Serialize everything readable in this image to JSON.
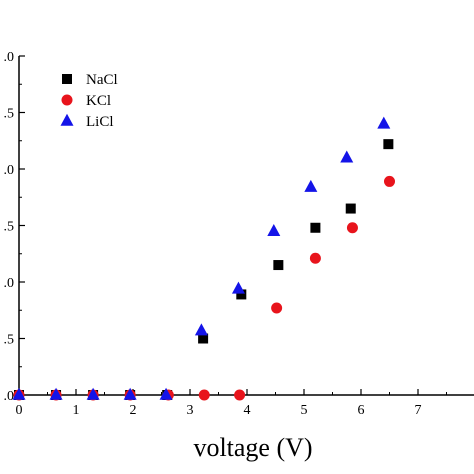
{
  "chart_data": {
    "type": "scatter",
    "title": "",
    "xlabel": "voltage (V)",
    "ylabel": "",
    "xlim": [
      0,
      8
    ],
    "ylim": [
      0,
      3.0
    ],
    "grid": false,
    "legend_position": "top-left",
    "x_tick_labels": [
      "0",
      "1",
      "2",
      "3",
      "4",
      "5",
      "6",
      "7"
    ],
    "y_tick_labels": [
      ".0",
      ".5",
      ".0",
      ".5",
      ".0",
      ".5",
      ".0"
    ],
    "series": [
      {
        "name": "NaCl",
        "marker": "square",
        "color": "#000000",
        "x": [
          0.0,
          0.65,
          1.3,
          1.95,
          2.6,
          3.23,
          3.9,
          4.55,
          5.2,
          5.82,
          6.48
        ],
        "y": [
          0.0,
          0.0,
          0.0,
          0.0,
          0.0,
          0.5,
          0.89,
          1.15,
          1.48,
          1.65,
          2.22
        ]
      },
      {
        "name": "KCl",
        "marker": "circle",
        "color": "#e8141c",
        "x": [
          0.0,
          0.65,
          1.3,
          1.95,
          2.62,
          3.25,
          3.87,
          4.52,
          5.2,
          5.85,
          6.5
        ],
        "y": [
          0.0,
          0.0,
          0.0,
          0.0,
          0.0,
          0.0,
          0.0,
          0.77,
          1.21,
          1.48,
          1.89
        ]
      },
      {
        "name": "LiCl",
        "marker": "triangle",
        "color": "#1414e8",
        "x": [
          0.0,
          0.65,
          1.3,
          1.95,
          2.58,
          3.2,
          3.85,
          4.47,
          5.12,
          5.75,
          6.4
        ],
        "y": [
          0.0,
          0.0,
          0.0,
          0.0,
          0.0,
          0.57,
          0.94,
          1.45,
          1.84,
          2.1,
          2.4
        ]
      }
    ]
  }
}
